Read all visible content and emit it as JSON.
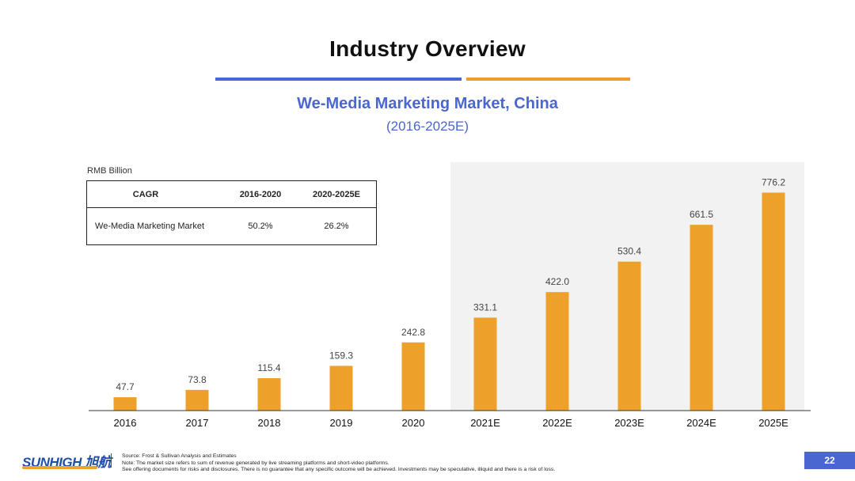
{
  "header": {
    "title": "Industry Overview",
    "subtitle": "We-Media Marketing Market, China",
    "period": "(2016-2025E)"
  },
  "unit_label": "RMB Billion",
  "cagr_table": {
    "headers": [
      "CAGR",
      "2016-2020",
      "2020-2025E"
    ],
    "rows": [
      [
        "We-Media Marketing Market",
        "50.2%",
        "26.2%"
      ]
    ]
  },
  "chart_data": {
    "type": "bar",
    "title": "We-Media Marketing Market, China",
    "ylabel": "RMB Billion",
    "categories": [
      "2016",
      "2017",
      "2018",
      "2019",
      "2020",
      "2021E",
      "2022E",
      "2023E",
      "2024E",
      "2025E"
    ],
    "values": [
      47.7,
      73.8,
      115.4,
      159.3,
      242.8,
      331.1,
      422.0,
      530.4,
      661.5,
      776.2
    ],
    "value_labels": [
      "47.7",
      "73.8",
      "115.4",
      "159.3",
      "242.8",
      "331.1",
      "422.0",
      "530.4",
      "661.5",
      "776.2"
    ],
    "forecast_start_index": 5,
    "bar_color": "#EDA02A",
    "forecast_shading_color": "#F2F2F2",
    "ylim": [
      0,
      800
    ],
    "grid": false
  },
  "footer": {
    "logo_text": "SUNHIGH 旭航",
    "source": "Source: Frost & Sullivan Analysis and Estimates",
    "note": "Note: The market size refers to sum of revenue generated by live streaming platforms and short-video platforms.",
    "disclaimer": "See offering documents for risks and disclosures. There is no guarantee that any specific outcome will be achieved. Investments may be speculative, illiquid and there is a risk of loss.",
    "page_number": "22"
  },
  "colors": {
    "blue_accent": "#4A66D0",
    "orange_accent": "#EDA02A"
  }
}
